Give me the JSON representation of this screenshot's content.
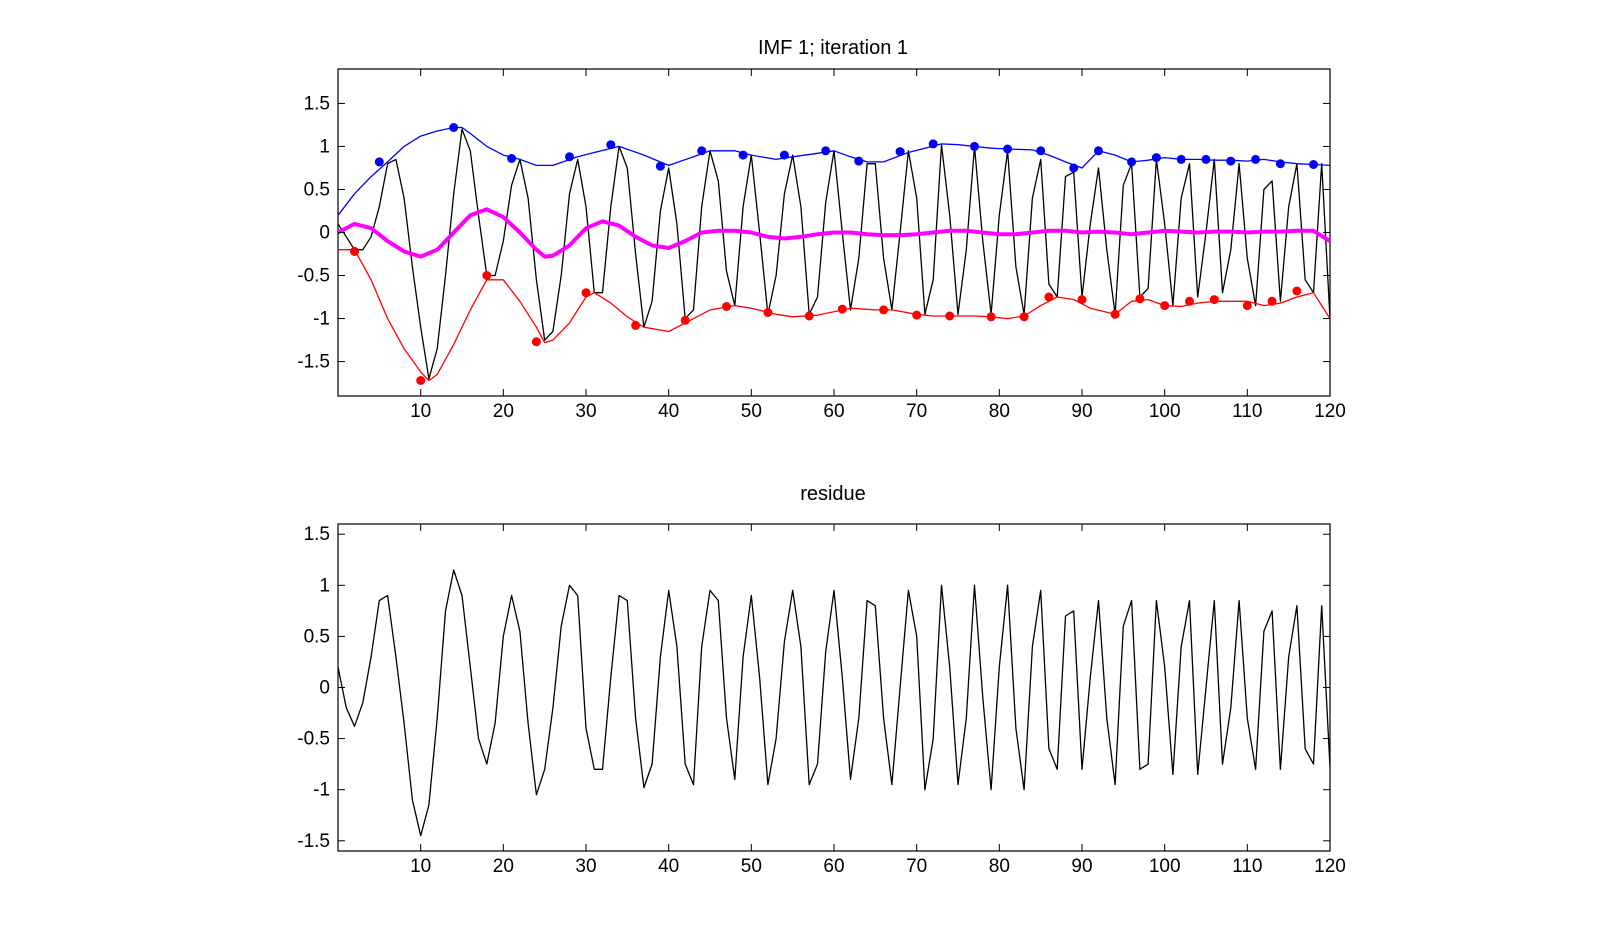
{
  "window_title": "",
  "colors": {
    "signal": "#000000",
    "upper_envelope": "#0000ff",
    "lower_envelope": "#ff0000",
    "mean_envelope": "#ff00ff"
  },
  "chart_data": [
    {
      "type": "line",
      "title": "IMF 1;   iteration 1",
      "xlabel": "",
      "ylabel": "",
      "xlim": [
        0,
        120
      ],
      "ylim": [
        -1.9,
        1.9
      ],
      "xticks": [
        10,
        20,
        30,
        40,
        50,
        60,
        70,
        80,
        90,
        100,
        110,
        120
      ],
      "xtick_labels": [
        "10",
        "20",
        "30",
        "40",
        "50",
        "60",
        "70",
        "80",
        "90",
        "100",
        "110",
        "120"
      ],
      "yticks": [
        1.5,
        1,
        0.5,
        0,
        -0.5,
        -1,
        -1.5
      ],
      "ytick_labels": [
        "1.5",
        "1",
        "0.5",
        "0",
        "-0.5",
        "-1",
        "-1.5"
      ],
      "grid": false,
      "series": [
        {
          "role": "signal",
          "color": "#000000",
          "x": [
            0,
            1,
            2,
            3,
            4,
            5,
            6,
            7,
            8,
            9,
            10,
            11,
            12,
            13,
            14,
            15,
            16,
            17,
            18,
            19,
            20,
            21,
            22,
            23,
            24,
            25,
            26,
            27,
            28,
            29,
            30,
            31,
            32,
            33,
            34,
            35,
            36,
            37,
            38,
            39,
            40,
            41,
            42,
            43,
            44,
            45,
            46,
            47,
            48,
            49,
            50,
            51,
            52,
            53,
            54,
            55,
            56,
            57,
            58,
            59,
            60,
            61,
            62,
            63,
            64,
            65,
            66,
            67,
            68,
            69,
            70,
            71,
            72,
            73,
            74,
            75,
            76,
            77,
            78,
            79,
            80,
            81,
            82,
            83,
            84,
            85,
            86,
            87,
            88,
            89,
            90,
            91,
            92,
            93,
            94,
            95,
            96,
            97,
            98,
            99,
            100,
            101,
            102,
            103,
            104,
            105,
            106,
            107,
            108,
            109,
            110,
            111,
            112,
            113,
            114,
            115,
            116,
            117,
            118,
            119,
            120
          ],
          "y": [
            0.1,
            -0.05,
            -0.2,
            -0.2,
            -0.05,
            0.3,
            0.8,
            0.85,
            0.4,
            -0.4,
            -1.1,
            -1.7,
            -1.35,
            -0.5,
            0.45,
            1.2,
            0.95,
            0.2,
            -0.5,
            -0.5,
            -0.1,
            0.55,
            0.85,
            0.4,
            -0.55,
            -1.25,
            -1.15,
            -0.5,
            0.45,
            0.85,
            0.3,
            -0.7,
            -0.7,
            0.3,
            1.0,
            0.75,
            -0.25,
            -1.1,
            -0.8,
            0.25,
            0.75,
            0.1,
            -1.0,
            -0.9,
            0.3,
            0.95,
            0.6,
            -0.45,
            -0.85,
            0.3,
            0.9,
            0.0,
            -0.95,
            -0.5,
            0.45,
            0.9,
            0.3,
            -0.95,
            -0.75,
            0.35,
            0.95,
            0.0,
            -0.9,
            -0.3,
            0.8,
            0.8,
            -0.3,
            -0.9,
            0.0,
            0.95,
            0.4,
            -0.95,
            -0.55,
            1.02,
            0.2,
            -0.95,
            -0.2,
            1.0,
            -0.1,
            -0.95,
            0.2,
            0.95,
            -0.4,
            -0.95,
            0.4,
            0.85,
            -0.6,
            -0.75,
            0.65,
            0.7,
            -0.75,
            0.1,
            0.75,
            -0.2,
            -0.95,
            0.55,
            0.8,
            -0.75,
            -0.65,
            0.85,
            0.1,
            -0.85,
            0.4,
            0.8,
            -0.75,
            0.0,
            0.85,
            -0.7,
            -0.2,
            0.8,
            -0.3,
            -0.85,
            0.5,
            0.6,
            -0.8,
            0.3,
            0.8,
            -0.55,
            -0.7,
            0.8,
            -1.0
          ]
        },
        {
          "role": "upper_envelope",
          "color": "#0000ff",
          "x": [
            0,
            2,
            4,
            6,
            8,
            10,
            12,
            14,
            15,
            16,
            18,
            20,
            22,
            24,
            26,
            29,
            31,
            34,
            37,
            40,
            43,
            45,
            48,
            50,
            53,
            55,
            58,
            60,
            62,
            64,
            66,
            69,
            71,
            73,
            75,
            77,
            79,
            81,
            84,
            86,
            88,
            90,
            92,
            94,
            96,
            98,
            100,
            102,
            104,
            106,
            108,
            110,
            112,
            114,
            116,
            118,
            120
          ],
          "y": [
            0.2,
            0.45,
            0.65,
            0.82,
            1.0,
            1.12,
            1.18,
            1.22,
            1.22,
            1.15,
            1.0,
            0.9,
            0.85,
            0.78,
            0.78,
            0.88,
            0.93,
            1.0,
            0.9,
            0.78,
            0.88,
            0.95,
            0.95,
            0.9,
            0.85,
            0.88,
            0.92,
            0.95,
            0.88,
            0.82,
            0.82,
            0.93,
            0.98,
            1.03,
            1.02,
            1.0,
            0.98,
            0.97,
            0.96,
            0.9,
            0.82,
            0.75,
            0.95,
            0.9,
            0.82,
            0.84,
            0.87,
            0.85,
            0.85,
            0.84,
            0.84,
            0.83,
            0.85,
            0.82,
            0.8,
            0.79,
            0.78
          ]
        },
        {
          "role": "lower_envelope",
          "color": "#ff0000",
          "x": [
            0,
            2,
            4,
            6,
            8,
            10,
            11,
            12,
            14,
            16,
            18,
            20,
            22,
            24,
            25,
            26,
            28,
            30,
            31,
            33,
            35,
            37,
            40,
            42,
            45,
            48,
            50,
            53,
            55,
            58,
            60,
            62,
            65,
            67,
            70,
            72,
            75,
            77,
            79,
            81,
            83,
            85,
            87,
            89,
            91,
            94,
            96,
            98,
            100,
            102,
            104,
            106,
            108,
            110,
            112,
            114,
            116,
            118,
            120
          ],
          "y": [
            -0.2,
            -0.2,
            -0.55,
            -1.0,
            -1.35,
            -1.62,
            -1.72,
            -1.65,
            -1.3,
            -0.9,
            -0.55,
            -0.55,
            -0.8,
            -1.1,
            -1.28,
            -1.25,
            -1.05,
            -0.75,
            -0.7,
            -0.82,
            -0.98,
            -1.1,
            -1.15,
            -1.05,
            -0.9,
            -0.85,
            -0.88,
            -0.95,
            -0.98,
            -0.96,
            -0.92,
            -0.88,
            -0.9,
            -0.9,
            -0.95,
            -0.97,
            -0.97,
            -0.97,
            -0.98,
            -1.0,
            -0.97,
            -0.85,
            -0.75,
            -0.78,
            -0.88,
            -0.95,
            -0.8,
            -0.78,
            -0.85,
            -0.86,
            -0.82,
            -0.8,
            -0.8,
            -0.8,
            -0.85,
            -0.82,
            -0.75,
            -0.7,
            -1.0
          ]
        },
        {
          "role": "mean_envelope",
          "color": "#ff00ff",
          "x": [
            0,
            2,
            4,
            6,
            8,
            10,
            12,
            14,
            16,
            18,
            20,
            22,
            24,
            25,
            26,
            28,
            30,
            32,
            34,
            36,
            38,
            40,
            42,
            44,
            46,
            48,
            50,
            52,
            54,
            56,
            58,
            60,
            62,
            64,
            66,
            68,
            70,
            72,
            74,
            76,
            78,
            80,
            82,
            84,
            86,
            88,
            90,
            92,
            94,
            96,
            98,
            100,
            102,
            104,
            106,
            108,
            110,
            112,
            114,
            116,
            118,
            120
          ],
          "y": [
            0.0,
            0.1,
            0.05,
            -0.1,
            -0.22,
            -0.28,
            -0.2,
            0.0,
            0.2,
            0.27,
            0.18,
            0.0,
            -0.2,
            -0.28,
            -0.27,
            -0.15,
            0.05,
            0.13,
            0.08,
            -0.05,
            -0.15,
            -0.18,
            -0.1,
            0.0,
            0.02,
            0.02,
            0.0,
            -0.05,
            -0.07,
            -0.05,
            -0.02,
            0.0,
            0.0,
            -0.02,
            -0.03,
            -0.03,
            -0.02,
            0.0,
            0.02,
            0.02,
            0.0,
            -0.02,
            -0.02,
            0.0,
            0.02,
            0.02,
            0.0,
            0.01,
            0.0,
            -0.02,
            0.0,
            0.02,
            0.01,
            0.0,
            0.01,
            0.01,
            0.0,
            0.01,
            0.01,
            0.02,
            0.02,
            -0.1
          ]
        }
      ],
      "markers": [
        {
          "role": "maxima",
          "color": "#0000ff",
          "x": [
            5,
            14,
            21,
            28,
            33,
            39,
            44,
            49,
            54,
            59,
            63,
            68,
            72,
            77,
            81,
            85,
            89,
            92,
            96,
            99,
            102,
            105,
            108,
            111,
            114,
            118
          ],
          "y": [
            0.82,
            1.22,
            0.86,
            0.88,
            1.02,
            0.77,
            0.95,
            0.9,
            0.9,
            0.95,
            0.83,
            0.94,
            1.03,
            1.0,
            0.97,
            0.95,
            0.75,
            0.95,
            0.82,
            0.87,
            0.85,
            0.85,
            0.83,
            0.85,
            0.8,
            0.79
          ]
        },
        {
          "role": "minima",
          "color": "#ff0000",
          "x": [
            2,
            10,
            18,
            24,
            30,
            36,
            42,
            47,
            52,
            57,
            61,
            66,
            70,
            74,
            79,
            83,
            86,
            90,
            94,
            97,
            100,
            103,
            106,
            110,
            113,
            116
          ],
          "y": [
            -0.22,
            -1.72,
            -0.5,
            -1.27,
            -0.7,
            -1.08,
            -1.02,
            -0.86,
            -0.93,
            -0.97,
            -0.89,
            -0.9,
            -0.96,
            -0.97,
            -0.98,
            -0.98,
            -0.75,
            -0.78,
            -0.95,
            -0.77,
            -0.85,
            -0.8,
            -0.78,
            -0.85,
            -0.8,
            -0.68
          ]
        }
      ]
    },
    {
      "type": "line",
      "title": "residue",
      "xlabel": "",
      "ylabel": "",
      "xlim": [
        0,
        120
      ],
      "ylim": [
        -1.6,
        1.6
      ],
      "xticks": [
        10,
        20,
        30,
        40,
        50,
        60,
        70,
        80,
        90,
        100,
        110,
        120
      ],
      "xtick_labels": [
        "10",
        "20",
        "30",
        "40",
        "50",
        "60",
        "70",
        "80",
        "90",
        "100",
        "110",
        "120"
      ],
      "yticks": [
        1.5,
        1,
        0.5,
        0,
        -0.5,
        -1,
        -1.5
      ],
      "ytick_labels": [
        "1.5",
        "1",
        "0.5",
        "0",
        "-0.5",
        "-1",
        "-1.5"
      ],
      "grid": false,
      "series": [
        {
          "role": "residue",
          "color": "#000000",
          "x": [
            0,
            1,
            2,
            3,
            4,
            5,
            6,
            7,
            8,
            9,
            10,
            11,
            12,
            13,
            14,
            15,
            16,
            17,
            18,
            19,
            20,
            21,
            22,
            23,
            24,
            25,
            26,
            27,
            28,
            29,
            30,
            31,
            32,
            33,
            34,
            35,
            36,
            37,
            38,
            39,
            40,
            41,
            42,
            43,
            44,
            45,
            46,
            47,
            48,
            49,
            50,
            51,
            52,
            53,
            54,
            55,
            56,
            57,
            58,
            59,
            60,
            61,
            62,
            63,
            64,
            65,
            66,
            67,
            68,
            69,
            70,
            71,
            72,
            73,
            74,
            75,
            76,
            77,
            78,
            79,
            80,
            81,
            82,
            83,
            84,
            85,
            86,
            87,
            88,
            89,
            90,
            91,
            92,
            93,
            94,
            95,
            96,
            97,
            98,
            99,
            100,
            101,
            102,
            103,
            104,
            105,
            106,
            107,
            108,
            109,
            110,
            111,
            112,
            113,
            114,
            115,
            116,
            117,
            118,
            119,
            120
          ],
          "y": [
            0.2,
            -0.2,
            -0.38,
            -0.15,
            0.3,
            0.85,
            0.9,
            0.3,
            -0.35,
            -1.1,
            -1.45,
            -1.15,
            -0.3,
            0.75,
            1.15,
            0.9,
            0.2,
            -0.5,
            -0.75,
            -0.35,
            0.5,
            0.9,
            0.55,
            -0.35,
            -1.05,
            -0.8,
            -0.2,
            0.6,
            1.0,
            0.9,
            -0.4,
            -0.8,
            -0.8,
            0.1,
            0.9,
            0.85,
            -0.3,
            -0.98,
            -0.75,
            0.3,
            0.95,
            0.4,
            -0.75,
            -0.95,
            0.4,
            0.95,
            0.85,
            -0.3,
            -0.9,
            0.3,
            0.9,
            0.1,
            -0.95,
            -0.5,
            0.45,
            0.95,
            0.4,
            -0.95,
            -0.75,
            0.35,
            0.95,
            0.1,
            -0.9,
            -0.3,
            0.85,
            0.8,
            -0.3,
            -0.95,
            0.0,
            0.95,
            0.5,
            -1.0,
            -0.5,
            1.0,
            0.2,
            -0.95,
            -0.3,
            1.0,
            -0.1,
            -1.0,
            0.2,
            1.0,
            -0.4,
            -1.0,
            0.4,
            0.95,
            -0.6,
            -0.8,
            0.7,
            0.75,
            -0.8,
            0.1,
            0.85,
            -0.3,
            -0.95,
            0.6,
            0.85,
            -0.8,
            -0.75,
            0.85,
            0.2,
            -0.85,
            0.4,
            0.85,
            -0.85,
            0.0,
            0.85,
            -0.75,
            -0.2,
            0.85,
            -0.3,
            -0.8,
            0.55,
            0.75,
            -0.8,
            0.3,
            0.8,
            -0.6,
            -0.75,
            0.8,
            -0.78
          ]
        }
      ]
    }
  ]
}
